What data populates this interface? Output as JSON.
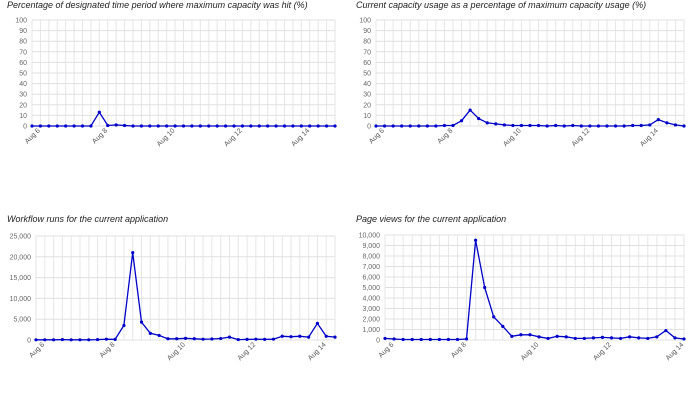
{
  "chart_data": [
    {
      "type": "line",
      "title": "Percentage of designated time period where maximum capacity was hit (%)",
      "ylim": [
        0,
        100
      ],
      "yticks": [
        "0",
        "10",
        "20",
        "30",
        "40",
        "50",
        "60",
        "70",
        "80",
        "90",
        "100"
      ],
      "yticks_values": [
        0,
        10,
        20,
        30,
        40,
        50,
        60,
        70,
        80,
        90,
        100
      ],
      "xticks": [
        "Aug 6",
        "Aug 8",
        "Aug 10",
        "Aug 12",
        "Aug 14"
      ],
      "xticks_index": [
        1,
        9,
        17,
        25,
        33
      ],
      "grid": true,
      "color": "#0000c8",
      "values": [
        0,
        0,
        0,
        0,
        0,
        0,
        0,
        0,
        13,
        0.5,
        1,
        0.5,
        0,
        0,
        0,
        0,
        0,
        0,
        0,
        0,
        0,
        0,
        0,
        0,
        0,
        0,
        0,
        0,
        0,
        0,
        0,
        0,
        0,
        0,
        0,
        0,
        0
      ]
    },
    {
      "type": "line",
      "title": "Current capacity usage as a percentage of maximum capacity usage (%)",
      "ylim": [
        0,
        100
      ],
      "yticks": [
        "0",
        "10",
        "20",
        "30",
        "40",
        "50",
        "60",
        "70",
        "80",
        "90",
        "100"
      ],
      "yticks_values": [
        0,
        10,
        20,
        30,
        40,
        50,
        60,
        70,
        80,
        90,
        100
      ],
      "xticks": [
        "Aug 6",
        "Aug 8",
        "Aug 10",
        "Aug 12",
        "Aug 14"
      ],
      "xticks_index": [
        1,
        9,
        17,
        25,
        33
      ],
      "grid": true,
      "color": "#0000c8",
      "values": [
        0,
        0,
        0,
        0,
        0,
        0,
        0,
        0,
        0.5,
        0.5,
        5,
        15,
        7,
        3,
        2,
        1,
        0.5,
        0.5,
        0.5,
        0.5,
        0,
        0.5,
        0,
        0.5,
        0,
        0,
        0,
        0,
        0,
        0,
        0.5,
        0.5,
        1,
        6,
        3,
        1,
        0
      ]
    },
    {
      "type": "line",
      "title": "Workflow runs for the current application",
      "ylim": [
        0,
        25000
      ],
      "yticks": [
        "0",
        "5,000",
        "10,000",
        "15,000",
        "20,000",
        "25,000"
      ],
      "yticks_values": [
        0,
        5000,
        10000,
        15000,
        20000,
        25000
      ],
      "xticks": [
        "Aug 6",
        "Aug 8",
        "Aug 10",
        "Aug 12",
        "Aug 14"
      ],
      "xticks_index": [
        1,
        9,
        17,
        25,
        33
      ],
      "grid": true,
      "color": "#0000c8",
      "values": [
        50,
        50,
        50,
        100,
        50,
        50,
        50,
        100,
        200,
        150,
        3500,
        21000,
        4300,
        1600,
        1100,
        300,
        300,
        400,
        300,
        200,
        250,
        350,
        700,
        100,
        150,
        200,
        150,
        200,
        900,
        800,
        900,
        700,
        4000,
        900,
        700
      ]
    },
    {
      "type": "line",
      "title": "Page views for the current application",
      "ylim": [
        0,
        10000
      ],
      "yticks": [
        "0",
        "1,000",
        "2,000",
        "3,000",
        "4,000",
        "5,000",
        "6,000",
        "7,000",
        "8,000",
        "9,000",
        "10,000"
      ],
      "yticks_values": [
        0,
        1000,
        2000,
        3000,
        4000,
        5000,
        6000,
        7000,
        8000,
        9000,
        10000
      ],
      "xticks": [
        "Aug 6",
        "Aug 8",
        "Aug 10",
        "Aug 12",
        "Aug 14"
      ],
      "xticks_index": [
        1,
        9,
        17,
        25,
        33
      ],
      "grid": true,
      "color": "#0000c8",
      "values": [
        150,
        100,
        50,
        50,
        50,
        50,
        50,
        50,
        50,
        100,
        9500,
        5000,
        2200,
        1300,
        350,
        500,
        500,
        300,
        150,
        350,
        300,
        150,
        150,
        200,
        250,
        200,
        150,
        300,
        200,
        150,
        300,
        900,
        200,
        100
      ]
    }
  ]
}
